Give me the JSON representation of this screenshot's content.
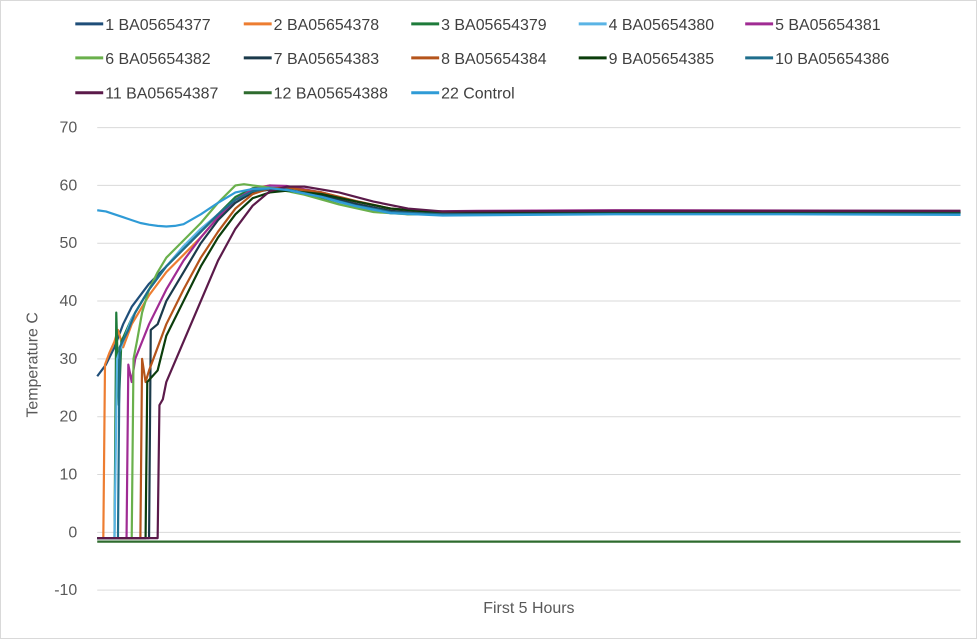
{
  "chart_data": {
    "type": "line",
    "title": "",
    "xlabel": "First 5 Hours",
    "ylabel": "Temperature C",
    "ylim": [
      -10,
      70
    ],
    "yticks": [
      -10,
      0,
      10,
      20,
      30,
      40,
      50,
      60,
      70
    ],
    "xlim": [
      0,
      5
    ],
    "grid": true,
    "legend_position": "top",
    "series": [
      {
        "name": "1 BA05654377",
        "color": "#1f4e79",
        "points": [
          [
            0,
            27
          ],
          [
            0.05,
            29
          ],
          [
            0.1,
            32
          ],
          [
            0.15,
            36
          ],
          [
            0.2,
            39
          ],
          [
            0.3,
            43
          ],
          [
            0.4,
            46
          ],
          [
            0.5,
            49
          ],
          [
            0.6,
            52
          ],
          [
            0.7,
            55
          ],
          [
            0.8,
            57.5
          ],
          [
            0.9,
            59
          ],
          [
            1.0,
            59.6
          ],
          [
            1.05,
            59.5
          ],
          [
            1.2,
            58.8
          ],
          [
            1.4,
            57.2
          ],
          [
            1.6,
            55.8
          ],
          [
            1.8,
            55
          ],
          [
            2.2,
            55.2
          ],
          [
            3,
            55.2
          ],
          [
            4,
            55.2
          ],
          [
            5,
            55.2
          ]
        ]
      },
      {
        "name": "2 BA05654378",
        "color": "#ed7d31",
        "points": [
          [
            0,
            -1
          ],
          [
            0.035,
            -1
          ],
          [
            0.045,
            29
          ],
          [
            0.07,
            31
          ],
          [
            0.1,
            33
          ],
          [
            0.12,
            35
          ],
          [
            0.15,
            32
          ],
          [
            0.2,
            36
          ],
          [
            0.3,
            41
          ],
          [
            0.4,
            45
          ],
          [
            0.5,
            48
          ],
          [
            0.6,
            51
          ],
          [
            0.7,
            54.5
          ],
          [
            0.8,
            57.5
          ],
          [
            0.9,
            59.5
          ],
          [
            1.0,
            60
          ],
          [
            1.1,
            59.6
          ],
          [
            1.3,
            58.4
          ],
          [
            1.5,
            56.8
          ],
          [
            1.7,
            55.5
          ],
          [
            1.9,
            55.2
          ],
          [
            3,
            55.3
          ],
          [
            5,
            55.3
          ]
        ]
      },
      {
        "name": "3 BA05654379",
        "color": "#1e7b3a",
        "points": [
          [
            0,
            -1
          ],
          [
            0.1,
            -1
          ],
          [
            0.11,
            38
          ],
          [
            0.125,
            22
          ],
          [
            0.14,
            33
          ],
          [
            0.2,
            37
          ],
          [
            0.3,
            42
          ],
          [
            0.4,
            46
          ],
          [
            0.5,
            49
          ],
          [
            0.6,
            52
          ],
          [
            0.7,
            55
          ],
          [
            0.8,
            58
          ],
          [
            0.9,
            59.5
          ],
          [
            1.0,
            59.8
          ],
          [
            1.1,
            59.3
          ],
          [
            1.3,
            57.8
          ],
          [
            1.5,
            56.2
          ],
          [
            1.7,
            55.2
          ],
          [
            2.0,
            55
          ],
          [
            3,
            55.2
          ],
          [
            5,
            55.2
          ]
        ]
      },
      {
        "name": "4 BA05654380",
        "color": "#5ab4e5",
        "points": [
          [
            0,
            -1
          ],
          [
            0.1,
            -1
          ],
          [
            0.115,
            30
          ],
          [
            0.15,
            33
          ],
          [
            0.2,
            37
          ],
          [
            0.3,
            42
          ],
          [
            0.4,
            46
          ],
          [
            0.5,
            49.5
          ],
          [
            0.6,
            52.5
          ],
          [
            0.7,
            55
          ],
          [
            0.8,
            57.5
          ],
          [
            0.9,
            59.3
          ],
          [
            1.0,
            59.8
          ],
          [
            1.1,
            59.4
          ],
          [
            1.3,
            58
          ],
          [
            1.5,
            56.2
          ],
          [
            1.7,
            55.2
          ],
          [
            2.0,
            55
          ],
          [
            3,
            55.1
          ],
          [
            5,
            55.1
          ]
        ]
      },
      {
        "name": "5 BA05654381",
        "color": "#a02b93",
        "points": [
          [
            0,
            -1
          ],
          [
            0.17,
            -1
          ],
          [
            0.18,
            29
          ],
          [
            0.2,
            26
          ],
          [
            0.22,
            30
          ],
          [
            0.3,
            36
          ],
          [
            0.4,
            42
          ],
          [
            0.5,
            47
          ],
          [
            0.6,
            51
          ],
          [
            0.7,
            54.5
          ],
          [
            0.8,
            57.5
          ],
          [
            0.9,
            59.3
          ],
          [
            1.0,
            60
          ],
          [
            1.1,
            59.9
          ],
          [
            1.3,
            58.8
          ],
          [
            1.5,
            57.2
          ],
          [
            1.7,
            56
          ],
          [
            1.9,
            55.5
          ],
          [
            2.2,
            55.6
          ],
          [
            3,
            55.7
          ],
          [
            5,
            55.6
          ]
        ]
      },
      {
        "name": "6 BA05654382",
        "color": "#6ab04c",
        "points": [
          [
            0,
            -1
          ],
          [
            0.2,
            -1
          ],
          [
            0.21,
            30
          ],
          [
            0.23,
            33
          ],
          [
            0.26,
            38
          ],
          [
            0.3,
            42
          ],
          [
            0.35,
            45
          ],
          [
            0.4,
            47.5
          ],
          [
            0.5,
            50.5
          ],
          [
            0.6,
            53.5
          ],
          [
            0.7,
            57
          ],
          [
            0.8,
            60
          ],
          [
            0.85,
            60.2
          ],
          [
            0.9,
            60
          ],
          [
            1.0,
            59.6
          ],
          [
            1.2,
            58.4
          ],
          [
            1.4,
            56.7
          ],
          [
            1.6,
            55.4
          ],
          [
            1.8,
            55
          ],
          [
            3,
            55.2
          ],
          [
            5,
            55.2
          ]
        ]
      },
      {
        "name": "7 BA05654383",
        "color": "#1b3a4b",
        "points": [
          [
            0,
            -1
          ],
          [
            0.3,
            -1
          ],
          [
            0.31,
            35
          ],
          [
            0.35,
            36
          ],
          [
            0.4,
            40
          ],
          [
            0.5,
            45
          ],
          [
            0.6,
            50
          ],
          [
            0.7,
            54
          ],
          [
            0.8,
            57
          ],
          [
            0.9,
            58.8
          ],
          [
            1.0,
            59.3
          ],
          [
            1.1,
            59.2
          ],
          [
            1.3,
            58.2
          ],
          [
            1.5,
            56.8
          ],
          [
            1.7,
            55.6
          ],
          [
            1.9,
            55.2
          ],
          [
            3,
            55.3
          ],
          [
            5,
            55.3
          ]
        ]
      },
      {
        "name": "8 BA05654384",
        "color": "#b5541b",
        "points": [
          [
            0,
            -1
          ],
          [
            0.25,
            -1
          ],
          [
            0.26,
            30
          ],
          [
            0.28,
            26
          ],
          [
            0.3,
            28
          ],
          [
            0.4,
            36
          ],
          [
            0.5,
            42
          ],
          [
            0.6,
            47.5
          ],
          [
            0.7,
            52
          ],
          [
            0.8,
            56
          ],
          [
            0.9,
            58.5
          ],
          [
            1.0,
            59.5
          ],
          [
            1.1,
            59.6
          ],
          [
            1.3,
            58.8
          ],
          [
            1.5,
            57.3
          ],
          [
            1.7,
            56
          ],
          [
            1.9,
            55.5
          ],
          [
            2.2,
            55.4
          ],
          [
            3,
            55.5
          ],
          [
            5,
            55.5
          ]
        ]
      },
      {
        "name": "9 BA05654385",
        "color": "#0b3d0b",
        "points": [
          [
            0,
            -1
          ],
          [
            0.28,
            -1
          ],
          [
            0.29,
            26
          ],
          [
            0.35,
            28
          ],
          [
            0.4,
            34
          ],
          [
            0.5,
            40
          ],
          [
            0.6,
            46
          ],
          [
            0.7,
            51
          ],
          [
            0.8,
            55
          ],
          [
            0.9,
            57.8
          ],
          [
            1.0,
            58.8
          ],
          [
            1.1,
            59.1
          ],
          [
            1.3,
            58.5
          ],
          [
            1.5,
            57.2
          ],
          [
            1.7,
            56
          ],
          [
            1.9,
            55.5
          ],
          [
            2.2,
            55.4
          ],
          [
            3,
            55.4
          ],
          [
            5,
            55.4
          ]
        ]
      },
      {
        "name": "10 BA05654386",
        "color": "#1f6e8c",
        "points": [
          [
            0,
            -1
          ],
          [
            0.12,
            -1
          ],
          [
            0.13,
            32
          ],
          [
            0.18,
            35
          ],
          [
            0.22,
            38
          ],
          [
            0.3,
            42
          ],
          [
            0.4,
            46
          ],
          [
            0.5,
            49
          ],
          [
            0.6,
            52
          ],
          [
            0.7,
            55
          ],
          [
            0.8,
            57.5
          ],
          [
            0.9,
            59
          ],
          [
            1.0,
            59.5
          ],
          [
            1.1,
            59.3
          ],
          [
            1.3,
            58
          ],
          [
            1.5,
            56.5
          ],
          [
            1.7,
            55.4
          ],
          [
            2.0,
            55
          ],
          [
            3,
            55.1
          ],
          [
            5,
            55.1
          ]
        ]
      },
      {
        "name": "11 BA05654387",
        "color": "#5b1a4a",
        "points": [
          [
            0,
            -1
          ],
          [
            0.35,
            -1
          ],
          [
            0.36,
            22
          ],
          [
            0.38,
            23
          ],
          [
            0.4,
            26
          ],
          [
            0.5,
            33
          ],
          [
            0.6,
            40
          ],
          [
            0.7,
            47
          ],
          [
            0.8,
            52.5
          ],
          [
            0.9,
            56.5
          ],
          [
            1.0,
            59
          ],
          [
            1.1,
            59.8
          ],
          [
            1.2,
            59.8
          ],
          [
            1.4,
            58.8
          ],
          [
            1.6,
            57.2
          ],
          [
            1.8,
            56
          ],
          [
            2.0,
            55.5
          ],
          [
            3,
            55.6
          ],
          [
            5,
            55.6
          ]
        ]
      },
      {
        "name": "12 BA05654388",
        "color": "#2e6b2e",
        "points": [
          [
            0,
            -1.6
          ],
          [
            1,
            -1.6
          ],
          [
            2,
            -1.6
          ],
          [
            3,
            -1.6
          ],
          [
            4,
            -1.6
          ],
          [
            5,
            -1.6
          ]
        ]
      },
      {
        "name": "22 Control",
        "color": "#2f9bd6",
        "points": [
          [
            0,
            55.7
          ],
          [
            0.05,
            55.5
          ],
          [
            0.1,
            55
          ],
          [
            0.15,
            54.5
          ],
          [
            0.2,
            54
          ],
          [
            0.25,
            53.5
          ],
          [
            0.3,
            53.2
          ],
          [
            0.35,
            53
          ],
          [
            0.4,
            52.9
          ],
          [
            0.45,
            53
          ],
          [
            0.5,
            53.3
          ],
          [
            0.6,
            55
          ],
          [
            0.7,
            57
          ],
          [
            0.8,
            58.8
          ],
          [
            0.9,
            59.4
          ],
          [
            1.0,
            59.5
          ],
          [
            1.1,
            59.2
          ],
          [
            1.3,
            58
          ],
          [
            1.5,
            56.4
          ],
          [
            1.7,
            55.2
          ],
          [
            2.0,
            54.8
          ],
          [
            3,
            55
          ],
          [
            4,
            55
          ],
          [
            5,
            54.9
          ]
        ]
      }
    ]
  }
}
